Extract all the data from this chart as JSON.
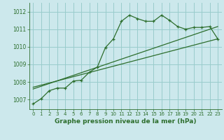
{
  "title": "Graphe pression niveau de la mer (hPa)",
  "bg_color": "#cce8ec",
  "grid_color": "#99cccc",
  "line_color": "#2d6e2d",
  "x_ticks": [
    0,
    1,
    2,
    3,
    4,
    5,
    6,
    7,
    8,
    9,
    10,
    11,
    12,
    13,
    14,
    15,
    16,
    17,
    18,
    19,
    20,
    21,
    22,
    23
  ],
  "y_ticks": [
    1007,
    1008,
    1009,
    1010,
    1011,
    1012
  ],
  "ylim": [
    1006.45,
    1012.5
  ],
  "xlim": [
    -0.5,
    23.5
  ],
  "curve1_x": [
    0,
    1,
    2,
    3,
    4,
    5,
    6,
    7,
    8,
    9,
    10,
    11,
    12,
    13,
    14,
    15,
    16,
    17,
    18,
    19,
    20,
    21,
    22,
    23
  ],
  "curve1_y": [
    1006.75,
    1007.05,
    1007.5,
    1007.65,
    1007.65,
    1008.05,
    1008.1,
    1008.55,
    1008.85,
    1009.95,
    1010.45,
    1011.45,
    1011.8,
    1011.6,
    1011.45,
    1011.45,
    1011.8,
    1011.5,
    1011.15,
    1011.0,
    1011.1,
    1011.1,
    1011.15,
    1010.45
  ],
  "curve2_x": [
    0,
    23
  ],
  "curve2_y": [
    1007.6,
    1011.15
  ],
  "curve3_x": [
    0,
    23
  ],
  "curve3_y": [
    1007.7,
    1010.45
  ]
}
